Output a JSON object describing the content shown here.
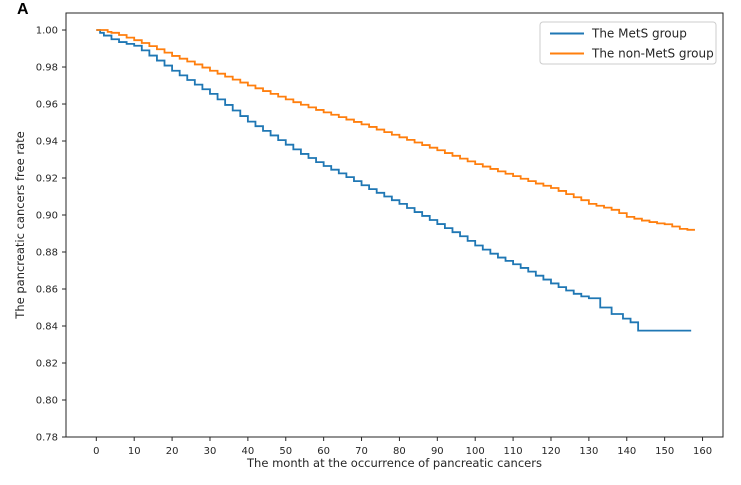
{
  "figure": {
    "panel_label": "A",
    "background_color": "#ffffff"
  },
  "chart_data": {
    "type": "line",
    "subtype": "kaplan-meier-step-survival",
    "title": "",
    "xlabel": "The month at the occurrence of pancreatic cancers",
    "ylabel": "The pancreatic cancers free rate",
    "grid": false,
    "legend_position": "upper right",
    "axis_color": "#262626",
    "xlim": [
      -8,
      165.4
    ],
    "ylim": [
      0.78,
      1.0092
    ],
    "x_ticks": [
      0,
      10,
      20,
      30,
      40,
      50,
      60,
      70,
      80,
      90,
      100,
      110,
      120,
      130,
      140,
      150,
      160
    ],
    "y_ticks": [
      0.78,
      0.8,
      0.82,
      0.84,
      0.86,
      0.88,
      0.9,
      0.92,
      0.94,
      0.96,
      0.98,
      1.0
    ],
    "series": [
      {
        "name": "The MetS group",
        "color": "#1f77b4",
        "points": [
          [
            0,
            1.0
          ],
          [
            1,
            0.9985
          ],
          [
            2,
            0.997
          ],
          [
            4,
            0.995
          ],
          [
            6,
            0.9935
          ],
          [
            8,
            0.9925
          ],
          [
            10,
            0.9915
          ],
          [
            12,
            0.989
          ],
          [
            14,
            0.9862
          ],
          [
            16,
            0.9835
          ],
          [
            18,
            0.9808
          ],
          [
            20,
            0.978
          ],
          [
            22,
            0.9755
          ],
          [
            24,
            0.973
          ],
          [
            26,
            0.9705
          ],
          [
            28,
            0.968
          ],
          [
            30,
            0.9655
          ],
          [
            32,
            0.9625
          ],
          [
            34,
            0.9595
          ],
          [
            36,
            0.9565
          ],
          [
            38,
            0.9535
          ],
          [
            40,
            0.9505
          ],
          [
            42,
            0.948
          ],
          [
            44,
            0.9455
          ],
          [
            46,
            0.943
          ],
          [
            48,
            0.9405
          ],
          [
            50,
            0.938
          ],
          [
            52,
            0.9355
          ],
          [
            54,
            0.933
          ],
          [
            56,
            0.9308
          ],
          [
            58,
            0.9286
          ],
          [
            60,
            0.9265
          ],
          [
            62,
            0.9245
          ],
          [
            64,
            0.9225
          ],
          [
            66,
            0.9205
          ],
          [
            68,
            0.9183
          ],
          [
            70,
            0.9161
          ],
          [
            72,
            0.914
          ],
          [
            74,
            0.912
          ],
          [
            76,
            0.91
          ],
          [
            78,
            0.908
          ],
          [
            80,
            0.906
          ],
          [
            82,
            0.9038
          ],
          [
            84,
            0.9016
          ],
          [
            86,
            0.8995
          ],
          [
            88,
            0.8973
          ],
          [
            90,
            0.8951
          ],
          [
            92,
            0.8929
          ],
          [
            94,
            0.8907
          ],
          [
            96,
            0.8885
          ],
          [
            98,
            0.886
          ],
          [
            100,
            0.8835
          ],
          [
            102,
            0.8813
          ],
          [
            104,
            0.8791
          ],
          [
            106,
            0.877
          ],
          [
            108,
            0.8752
          ],
          [
            110,
            0.8734
          ],
          [
            112,
            0.8714
          ],
          [
            114,
            0.8694
          ],
          [
            116,
            0.8672
          ],
          [
            118,
            0.8651
          ],
          [
            120,
            0.863
          ],
          [
            122,
            0.861
          ],
          [
            124,
            0.8592
          ],
          [
            126,
            0.8574
          ],
          [
            128,
            0.856
          ],
          [
            130,
            0.855
          ],
          [
            133,
            0.85
          ],
          [
            136,
            0.8465
          ],
          [
            139,
            0.844
          ],
          [
            141,
            0.842
          ],
          [
            143,
            0.8375
          ],
          [
            157,
            0.8375
          ]
        ]
      },
      {
        "name": "The non-MetS group",
        "color": "#ff7f0e",
        "points": [
          [
            0,
            1.0
          ],
          [
            2,
            1.0
          ],
          [
            3,
            0.999
          ],
          [
            4,
            0.9985
          ],
          [
            6,
            0.9973
          ],
          [
            8,
            0.9959
          ],
          [
            10,
            0.9945
          ],
          [
            12,
            0.993
          ],
          [
            14,
            0.9913
          ],
          [
            16,
            0.9896
          ],
          [
            18,
            0.9878
          ],
          [
            20,
            0.986
          ],
          [
            22,
            0.9845
          ],
          [
            24,
            0.983
          ],
          [
            26,
            0.9814
          ],
          [
            28,
            0.9797
          ],
          [
            30,
            0.978
          ],
          [
            32,
            0.9764
          ],
          [
            34,
            0.9748
          ],
          [
            36,
            0.9732
          ],
          [
            38,
            0.9716
          ],
          [
            40,
            0.97
          ],
          [
            42,
            0.9685
          ],
          [
            44,
            0.967
          ],
          [
            46,
            0.9655
          ],
          [
            48,
            0.964
          ],
          [
            50,
            0.9625
          ],
          [
            52,
            0.961
          ],
          [
            54,
            0.9596
          ],
          [
            56,
            0.9582
          ],
          [
            58,
            0.9568
          ],
          [
            60,
            0.9555
          ],
          [
            62,
            0.9542
          ],
          [
            64,
            0.9529
          ],
          [
            66,
            0.9516
          ],
          [
            68,
            0.9503
          ],
          [
            70,
            0.949
          ],
          [
            72,
            0.9476
          ],
          [
            74,
            0.9462
          ],
          [
            76,
            0.9448
          ],
          [
            78,
            0.9434
          ],
          [
            80,
            0.942
          ],
          [
            82,
            0.9406
          ],
          [
            84,
            0.9392
          ],
          [
            86,
            0.9378
          ],
          [
            88,
            0.9364
          ],
          [
            90,
            0.935
          ],
          [
            92,
            0.9335
          ],
          [
            94,
            0.932
          ],
          [
            96,
            0.9305
          ],
          [
            98,
            0.929
          ],
          [
            100,
            0.9275
          ],
          [
            102,
            0.9262
          ],
          [
            104,
            0.9249
          ],
          [
            106,
            0.9236
          ],
          [
            108,
            0.9223
          ],
          [
            110,
            0.921
          ],
          [
            112,
            0.9196
          ],
          [
            114,
            0.9183
          ],
          [
            116,
            0.917
          ],
          [
            118,
            0.9158
          ],
          [
            120,
            0.9146
          ],
          [
            122,
            0.913
          ],
          [
            124,
            0.9113
          ],
          [
            126,
            0.9096
          ],
          [
            128,
            0.908
          ],
          [
            130,
            0.906
          ],
          [
            132,
            0.905
          ],
          [
            134,
            0.904
          ],
          [
            136,
            0.9028
          ],
          [
            138,
            0.901
          ],
          [
            140,
            0.899
          ],
          [
            142,
            0.898
          ],
          [
            144,
            0.897
          ],
          [
            146,
            0.8962
          ],
          [
            148,
            0.8955
          ],
          [
            150,
            0.895
          ],
          [
            152,
            0.8938
          ],
          [
            154,
            0.8925
          ],
          [
            156,
            0.892
          ],
          [
            158,
            0.892
          ]
        ]
      }
    ]
  }
}
